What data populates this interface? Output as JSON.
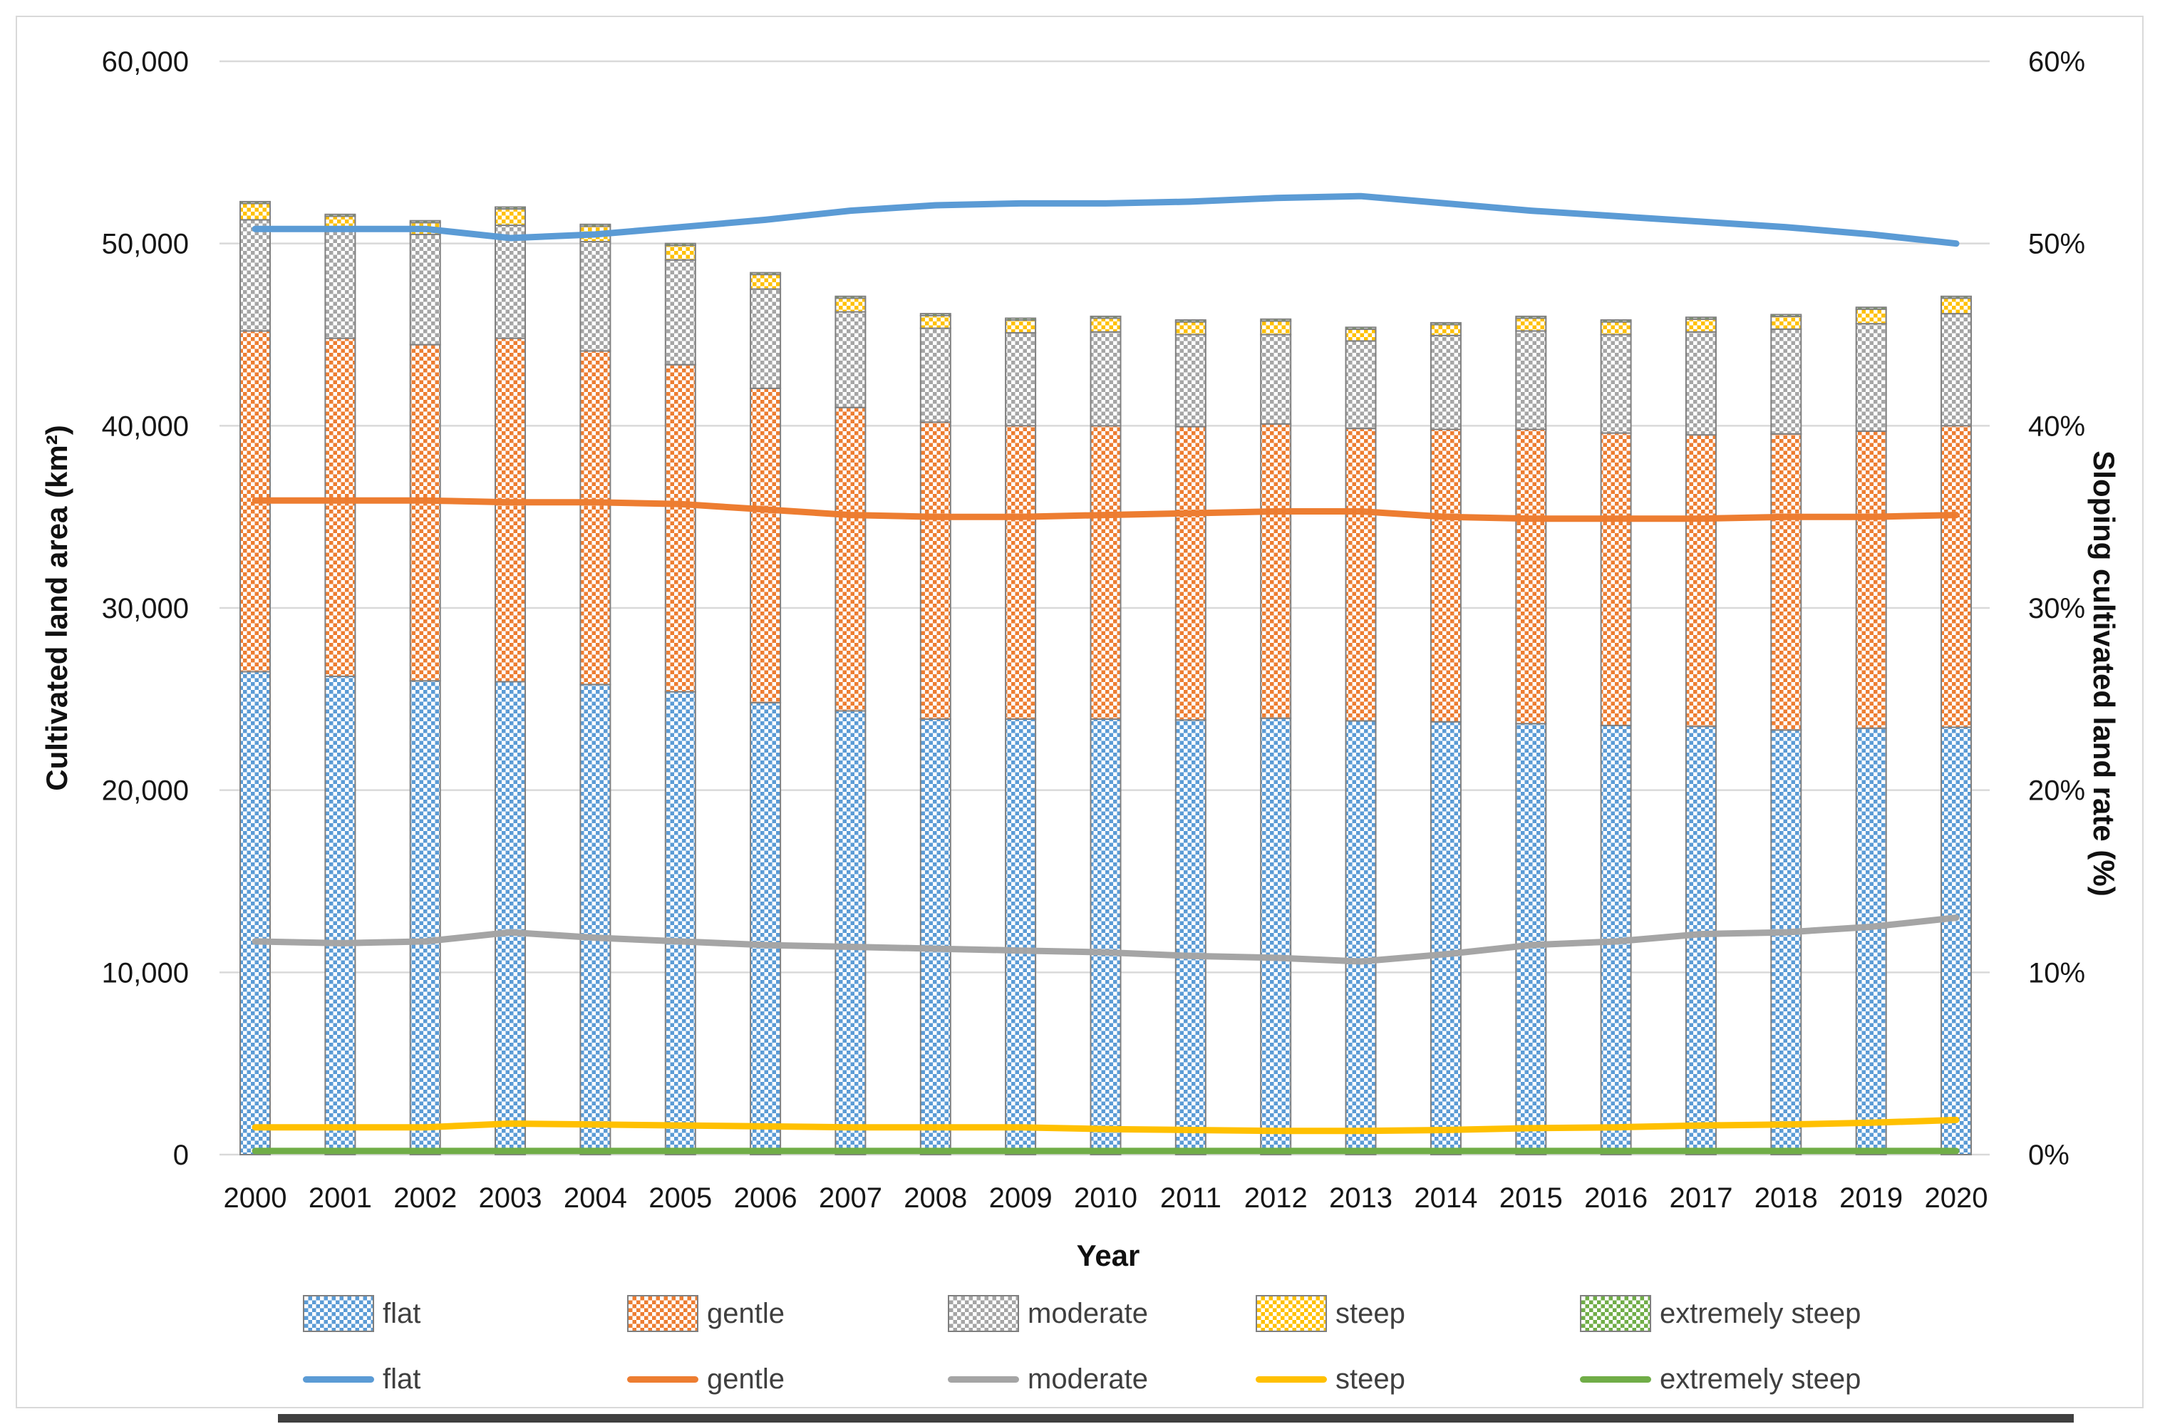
{
  "chart_data": {
    "type": "bar+line",
    "categories": [
      "2000",
      "2001",
      "2002",
      "2003",
      "2004",
      "2005",
      "2006",
      "2007",
      "2008",
      "2009",
      "2010",
      "2011",
      "2012",
      "2013",
      "2014",
      "2015",
      "2016",
      "2017",
      "2018",
      "2019",
      "2020"
    ],
    "bar_series": [
      {
        "name": "flat",
        "color": "#5B9BD5",
        "values": [
          26500,
          26250,
          26000,
          25950,
          25800,
          25400,
          24800,
          24350,
          23900,
          23900,
          23900,
          23850,
          23950,
          23800,
          23750,
          23650,
          23550,
          23500,
          23300,
          23400,
          23450
        ]
      },
      {
        "name": "gentle",
        "color": "#ED7D31",
        "values": [
          18700,
          18550,
          18450,
          18850,
          18300,
          17950,
          17250,
          16650,
          16300,
          16100,
          16100,
          16100,
          16150,
          16050,
          16050,
          16150,
          16050,
          16000,
          16250,
          16300,
          16550
        ]
      },
      {
        "name": "moderate",
        "color": "#A5A5A5",
        "values": [
          6100,
          6000,
          6050,
          6200,
          6000,
          5750,
          5450,
          5250,
          5150,
          5100,
          5150,
          5050,
          4900,
          4800,
          5150,
          5400,
          5400,
          5650,
          5750,
          5900,
          6150
        ]
      },
      {
        "name": "steep",
        "color": "#FFC000",
        "values": [
          900,
          700,
          650,
          900,
          850,
          800,
          800,
          750,
          700,
          700,
          750,
          700,
          750,
          650,
          600,
          700,
          700,
          700,
          700,
          800,
          850
        ]
      },
      {
        "name": "extremely steep",
        "color": "#70AD47",
        "values": [
          100,
          100,
          100,
          100,
          100,
          100,
          100,
          100,
          100,
          100,
          100,
          100,
          100,
          100,
          100,
          100,
          100,
          100,
          100,
          100,
          100
        ]
      }
    ],
    "line_series": [
      {
        "name": "flat",
        "color": "#5B9BD5",
        "values": [
          50.8,
          50.8,
          50.8,
          50.3,
          50.5,
          50.9,
          51.3,
          51.8,
          52.1,
          52.2,
          52.2,
          52.3,
          52.5,
          52.6,
          52.2,
          51.8,
          51.5,
          51.2,
          50.9,
          50.5,
          50.0
        ]
      },
      {
        "name": "gentle",
        "color": "#ED7D31",
        "values": [
          35.9,
          35.9,
          35.9,
          35.8,
          35.8,
          35.7,
          35.4,
          35.1,
          35.0,
          35.0,
          35.1,
          35.2,
          35.3,
          35.3,
          35.0,
          34.9,
          34.9,
          34.9,
          35.0,
          35.0,
          35.1
        ]
      },
      {
        "name": "moderate",
        "color": "#A5A5A5",
        "values": [
          11.7,
          11.6,
          11.7,
          12.2,
          11.9,
          11.7,
          11.5,
          11.4,
          11.3,
          11.2,
          11.1,
          10.9,
          10.8,
          10.6,
          11.0,
          11.5,
          11.7,
          12.1,
          12.2,
          12.5,
          13.0
        ]
      },
      {
        "name": "steep",
        "color": "#FFC000",
        "values": [
          1.5,
          1.5,
          1.5,
          1.7,
          1.65,
          1.6,
          1.55,
          1.5,
          1.5,
          1.5,
          1.4,
          1.35,
          1.3,
          1.3,
          1.35,
          1.45,
          1.5,
          1.6,
          1.65,
          1.75,
          1.9
        ]
      },
      {
        "name": "extremely steep",
        "color": "#70AD47",
        "values": [
          0.2,
          0.2,
          0.2,
          0.2,
          0.2,
          0.2,
          0.2,
          0.2,
          0.2,
          0.2,
          0.2,
          0.2,
          0.2,
          0.2,
          0.2,
          0.2,
          0.2,
          0.2,
          0.2,
          0.2,
          0.2
        ]
      }
    ],
    "axes": {
      "left": {
        "label": "Cultivated land area (km²)",
        "min": 0,
        "max": 60000,
        "ticks": [
          "60,000",
          "50,000",
          "40,000",
          "30,000",
          "20,000",
          "10,000",
          "0"
        ]
      },
      "right": {
        "label": "Sloping cultivated land rate (%)",
        "min": 0,
        "max": 60,
        "ticks": [
          "60%",
          "50%",
          "40%",
          "30%",
          "20%",
          "10%",
          "0%"
        ]
      },
      "x": {
        "label": "Year"
      }
    },
    "legend": {
      "bar_items": [
        "flat",
        "gentle",
        "moderate",
        "steep",
        "extremely steep"
      ],
      "line_items": [
        "flat",
        "gentle",
        "moderate",
        "steep",
        "extremely steep"
      ]
    },
    "grid": true,
    "gridline_color": "#D9D9D9"
  }
}
